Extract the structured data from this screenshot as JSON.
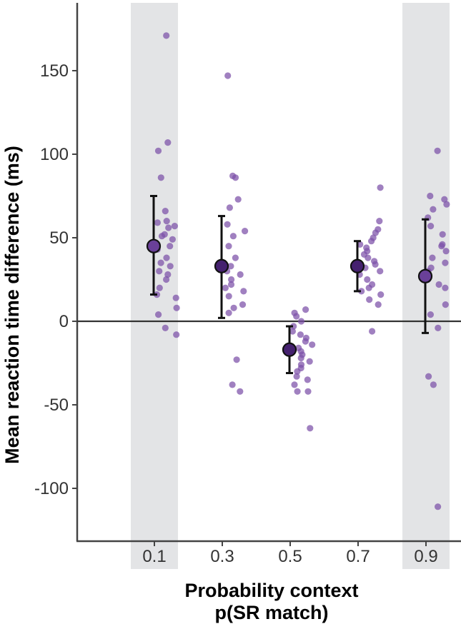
{
  "chart_data": {
    "type": "scatter",
    "xlabel": [
      "Probability context",
      "p(SR match)"
    ],
    "ylabel": "Mean reaction time difference (ms)",
    "categories": [
      "0.1",
      "0.3",
      "0.5",
      "0.7",
      "0.9"
    ],
    "shaded_categories": [
      "0.1",
      "0.9"
    ],
    "yticks": [
      150,
      100,
      50,
      0,
      -50,
      -100
    ],
    "ytick_labels": [
      "150",
      "100",
      "50",
      "0",
      "-50",
      "-100"
    ],
    "ylim": [
      -132,
      190
    ],
    "reference_line": 0,
    "grid": false,
    "colors": {
      "points": "#7b4fa8",
      "mean_fill_light": "#6a4099",
      "mean_fill_dark": "#45216f",
      "error_bar": "#111111",
      "shade": "#e3e4e6",
      "axis": "#444444"
    },
    "series": [
      {
        "category": "0.1",
        "mean": 45,
        "ci_low": 16,
        "ci_high": 75,
        "points": [
          171,
          107,
          102,
          86,
          66,
          60,
          59,
          57,
          56,
          52,
          51,
          49,
          45,
          43,
          38,
          35,
          33,
          30,
          28,
          25,
          20,
          16,
          14,
          8,
          4,
          -4,
          -8
        ]
      },
      {
        "category": "0.3",
        "mean": 33,
        "ci_low": 2,
        "ci_high": 63,
        "points": [
          147,
          87,
          86,
          73,
          68,
          58,
          54,
          51,
          45,
          38,
          33,
          30,
          28,
          25,
          22,
          20,
          18,
          15,
          10,
          8,
          5,
          -23,
          -38,
          -42
        ]
      },
      {
        "category": "0.5",
        "mean": -17,
        "ci_low": -31,
        "ci_high": -3,
        "points": [
          7,
          5,
          3,
          0,
          -3,
          -6,
          -8,
          -10,
          -12,
          -14,
          -16,
          -18,
          -20,
          -22,
          -24,
          -26,
          -28,
          -30,
          -33,
          -35,
          -38,
          -42,
          -42,
          -64
        ]
      },
      {
        "category": "0.7",
        "mean": 33,
        "ci_low": 18,
        "ci_high": 48,
        "points": [
          80,
          60,
          55,
          53,
          50,
          48,
          46,
          44,
          42,
          40,
          38,
          36,
          34,
          32,
          30,
          28,
          25,
          22,
          20,
          18,
          16,
          13,
          10,
          -6
        ]
      },
      {
        "category": "0.9",
        "mean": 27,
        "ci_low": -7,
        "ci_high": 61,
        "points": [
          102,
          75,
          73,
          70,
          67,
          62,
          57,
          52,
          46,
          45,
          42,
          38,
          35,
          32,
          30,
          27,
          25,
          22,
          20,
          10,
          4,
          -4,
          -33,
          -38,
          -111
        ]
      }
    ]
  }
}
